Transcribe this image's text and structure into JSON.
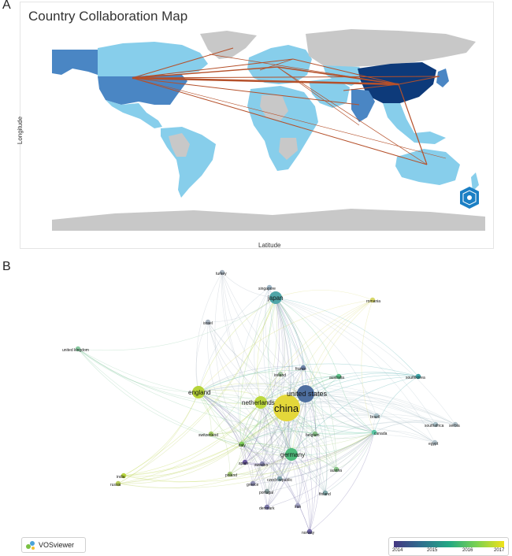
{
  "panel_a_letter": "A",
  "panel_b_letter": "B",
  "map": {
    "title": "Country Collaboration Map",
    "x_axis_title": "Latitude",
    "y_axis_title": "Longitude",
    "colors": {
      "ocean": "#ffffff",
      "no_data": "#c8c8c8",
      "low": "#87ceeb",
      "mid": "#4a86c4",
      "high": "#0d3a7a",
      "link": "#b5502a"
    }
  },
  "network": {
    "nodes": [
      {
        "id": "china",
        "label": "china",
        "color": "#e4d83a",
        "weight": "largest"
      },
      {
        "id": "united-states",
        "label": "united states",
        "color": "#4e6fa0",
        "weight": "large"
      },
      {
        "id": "japan",
        "label": "japan",
        "color": "#4fa6a8",
        "weight": "medium"
      },
      {
        "id": "england",
        "label": "england",
        "color": "#b6d33a",
        "weight": "medium"
      },
      {
        "id": "germany",
        "label": "germany",
        "color": "#4dbb7a",
        "weight": "medium"
      },
      {
        "id": "netherlands",
        "label": "netherlands",
        "color": "#bcd93e",
        "weight": "medium"
      },
      {
        "id": "canada",
        "label": "canada",
        "color": "#5cc6a6",
        "weight": "small"
      },
      {
        "id": "south-korea",
        "label": "southkorea",
        "color": "#3aa2a4",
        "weight": "small"
      },
      {
        "id": "italy",
        "label": "italy",
        "color": "#7fcf58",
        "weight": "small"
      },
      {
        "id": "france",
        "label": "france",
        "color": "#6d83a8",
        "weight": "small"
      },
      {
        "id": "belgium",
        "label": "belgium",
        "color": "#86bd86",
        "weight": "small"
      },
      {
        "id": "australia",
        "label": "australia",
        "color": "#5bbf86",
        "weight": "small"
      },
      {
        "id": "switzerland",
        "label": "switzerland",
        "color": "#a3cb66",
        "weight": "small"
      },
      {
        "id": "india",
        "label": "india",
        "color": "#b7d43d",
        "weight": "small"
      },
      {
        "id": "spain",
        "label": "spain",
        "color": "#6b5a9e",
        "weight": "small"
      },
      {
        "id": "sweden",
        "label": "sweden",
        "color": "#8a8ab0",
        "weight": "small"
      },
      {
        "id": "austria",
        "label": "austria",
        "color": "#88c488",
        "weight": "small"
      },
      {
        "id": "poland",
        "label": "poland",
        "color": "#a6c878",
        "weight": "small"
      },
      {
        "id": "czech-republic",
        "label": "czech republic",
        "color": "#7ea0a8",
        "weight": "small"
      },
      {
        "id": "portugal",
        "label": "portugal",
        "color": "#8aa0a0",
        "weight": "small"
      },
      {
        "id": "finland",
        "label": "finland",
        "color": "#7fa7a8",
        "weight": "small"
      },
      {
        "id": "iran",
        "label": "iran",
        "color": "#9f9fc0",
        "weight": "small"
      },
      {
        "id": "denmark",
        "label": "denmark",
        "color": "#7a77a8",
        "weight": "small"
      },
      {
        "id": "norway",
        "label": "norway",
        "color": "#6f66a5",
        "weight": "small"
      },
      {
        "id": "greece",
        "label": "greece",
        "color": "#8d8db0",
        "weight": "small"
      },
      {
        "id": "russia",
        "label": "russia",
        "color": "#b8cf5a",
        "weight": "small"
      },
      {
        "id": "united-kingdom",
        "label": "united kingdom",
        "color": "#88c9a0",
        "weight": "small"
      },
      {
        "id": "turkey",
        "label": "turkey",
        "color": "#a8b4c0",
        "weight": "small"
      },
      {
        "id": "singapore",
        "label": "singapore",
        "color": "#a0b8c8",
        "weight": "small"
      },
      {
        "id": "israel",
        "label": "israel",
        "color": "#a8b4c0",
        "weight": "small"
      },
      {
        "id": "ireland",
        "label": "ireland",
        "color": "#a8c8a8",
        "weight": "small"
      },
      {
        "id": "romania",
        "label": "romania",
        "color": "#d8d86a",
        "weight": "small"
      },
      {
        "id": "brazil",
        "label": "brazil",
        "color": "#a8c0c8",
        "weight": "small"
      },
      {
        "id": "south-africa",
        "label": "southafrica",
        "color": "#a8c0c8",
        "weight": "small"
      },
      {
        "id": "serbia",
        "label": "serbia",
        "color": "#b0c0c8",
        "weight": "small"
      },
      {
        "id": "egypt",
        "label": "egypt",
        "color": "#b0c0c8",
        "weight": "small"
      }
    ],
    "legend": {
      "ticks": [
        "2014",
        "2015",
        "2016",
        "2017"
      ]
    },
    "software_label": "VOSviewer"
  }
}
